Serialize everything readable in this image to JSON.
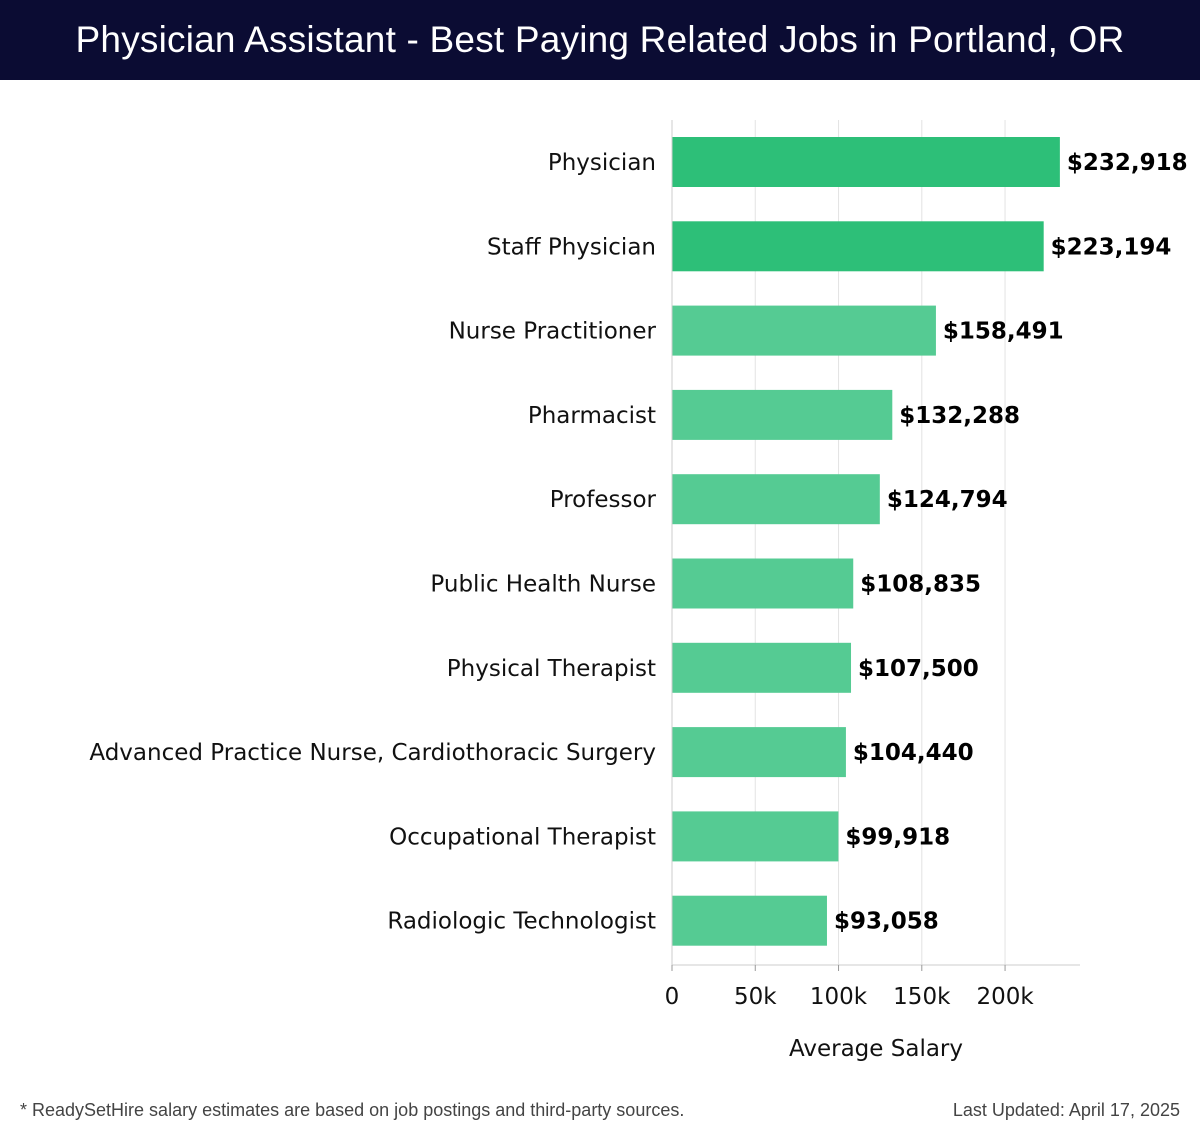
{
  "header": {
    "title": "Physician Assistant - Best Paying Related Jobs in Portland, OR"
  },
  "footer": {
    "note": "* ReadySetHire salary estimates are based on job postings and third-party sources.",
    "updated": "Last Updated: April 17, 2025"
  },
  "colors": {
    "bar_dark": "#2dbf78",
    "bar_light": "#55cb93",
    "header_bg": "#0b0c33"
  },
  "chart_data": {
    "type": "bar",
    "orientation": "horizontal",
    "categories": [
      "Physician",
      "Staff Physician",
      "Nurse Practitioner",
      "Pharmacist",
      "Professor",
      "Public Health Nurse",
      "Physical Therapist",
      "Advanced Practice Nurse, Cardiothoracic Surgery",
      "Occupational Therapist",
      "Radiologic Technologist"
    ],
    "values": [
      232918,
      223194,
      158491,
      132288,
      124794,
      108835,
      107500,
      104440,
      99918,
      93058
    ],
    "value_labels": [
      "$232,918",
      "$223,194",
      "$158,491",
      "$132,288",
      "$124,794",
      "$108,835",
      "$107,500",
      "$104,440",
      "$99,918",
      "$93,058"
    ],
    "xlabel": "Average Salary",
    "ylabel": "",
    "xlim": [
      0,
      245000
    ],
    "xticks": [
      0,
      50000,
      100000,
      150000,
      200000
    ],
    "xtick_labels": [
      "0",
      "50k",
      "100k",
      "150k",
      "200k"
    ],
    "grid": true
  }
}
